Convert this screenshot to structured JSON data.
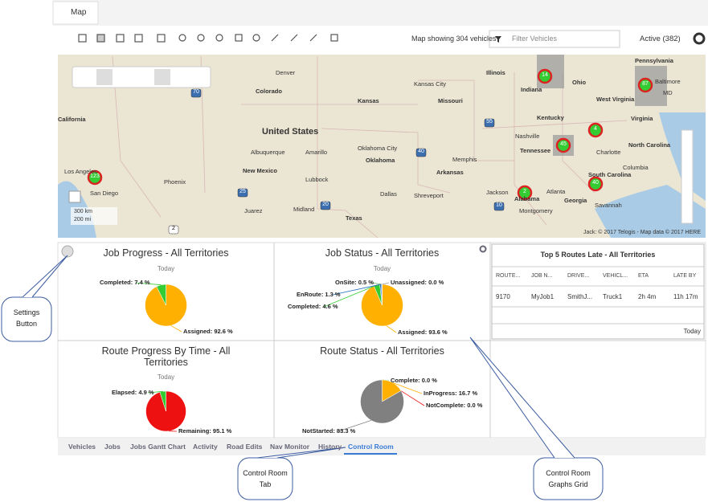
{
  "tab": {
    "title": "Map"
  },
  "toolbar": {
    "status": "Map showing 304 vehicles",
    "filter_placeholder": "Filter Vehicles",
    "active": "Active (382)"
  },
  "map": {
    "labels": [
      "Denver",
      "Colorado",
      "Kansas City",
      "Kansas",
      "Missouri",
      "Illinois",
      "Indiana",
      "Ohio",
      "Pennsylvania",
      "West Virginia",
      "Virginia",
      "Kentucky",
      "Nashville",
      "Tennessee",
      "Charlotte",
      "North Carolina",
      "South Carolina",
      "Atlanta",
      "Georgia",
      "Alabama",
      "Montgomery",
      "Memphis",
      "Arkansas",
      "Oklahoma City",
      "Oklahoma",
      "Amarillo",
      "Lubbock",
      "New Mexico",
      "Albuquerque",
      "Phoenix",
      "California",
      "Los Angeles",
      "San Diego",
      "Dallas",
      "Shreveport",
      "Jackson",
      "Texas",
      "Juarez",
      "Midland",
      "United States",
      "Baltimore",
      "MD",
      "Savannah",
      "Columbia"
    ],
    "highways": [
      "70",
      "25",
      "40",
      "20",
      "55",
      "10",
      "2"
    ],
    "clusters": [
      "14",
      "87",
      "4",
      "45",
      "40",
      "2",
      "123"
    ],
    "scale": [
      "300 km",
      "200 mi"
    ],
    "attribution": "Jack: © 2017 Telogis - Map data © 2017 HERE"
  },
  "panels": [
    {
      "title": "Job Progress - All Territories",
      "subtitle": "Today",
      "slices": [
        {
          "label": "Assigned: 92.6 %",
          "value": 92.6,
          "color": "#ffb000"
        },
        {
          "label": "Completed: 7.4 %",
          "value": 7.4,
          "color": "#33cc33"
        }
      ]
    },
    {
      "title": "Job Status - All Territories",
      "subtitle": "Today",
      "slices": [
        {
          "label": "Assigned: 93.6 %",
          "value": 93.6,
          "color": "#ffb000"
        },
        {
          "label": "Completed: 4.6 %",
          "value": 4.6,
          "color": "#33cc33"
        },
        {
          "label": "EnRoute: 1.3 %",
          "value": 1.3,
          "color": "#1f6fbf"
        },
        {
          "label": "OnSite: 0.5 %",
          "value": 0.5,
          "color": "#66aa66"
        },
        {
          "label": "Unassigned: 0.0 %",
          "value": 0.0,
          "color": "#999999"
        }
      ]
    },
    {
      "title": "Route Progress By Time - All Territories",
      "subtitle": "Today",
      "slices": [
        {
          "label": "Remaining: 95.1 %",
          "value": 95.1,
          "color": "#ee1111"
        },
        {
          "label": "Elapsed: 4.9 %",
          "value": 4.9,
          "color": "#33cc33"
        }
      ]
    },
    {
      "title": "Route Status - All Territories",
      "subtitle": "",
      "slices": [
        {
          "label": "Complete: 0.0 %",
          "value": 0.0,
          "color": "#33cc33"
        },
        {
          "label": "InProgress: 16.7 %",
          "value": 16.7,
          "color": "#ffb000"
        },
        {
          "label": "NotComplete: 0.0 %",
          "value": 0.0,
          "color": "#ee1111"
        },
        {
          "label": "NotStarted: 83.3 %",
          "value": 83.3,
          "color": "#808080"
        }
      ]
    }
  ],
  "table": {
    "title": "Top 5 Routes Late - All Territories",
    "columns": [
      "ROUTE...",
      "JOB N...",
      "DRIVE...",
      "VEHICL...",
      "ETA",
      "LATE BY"
    ],
    "rows": [
      [
        "9170",
        "MyJob1",
        "SmithJ...",
        "Truck1",
        "2h 4m",
        "11h 17m"
      ]
    ],
    "footer": "Today"
  },
  "bottom_tabs": [
    "Vehicles",
    "Jobs",
    "Jobs Gantt Chart",
    "Activity",
    "Road Edits",
    "Nav Monitor",
    "History",
    "Control Room"
  ],
  "annotations": [
    "Settings Button",
    "Control Room Tab",
    "Control Room Graphs Grid"
  ]
}
